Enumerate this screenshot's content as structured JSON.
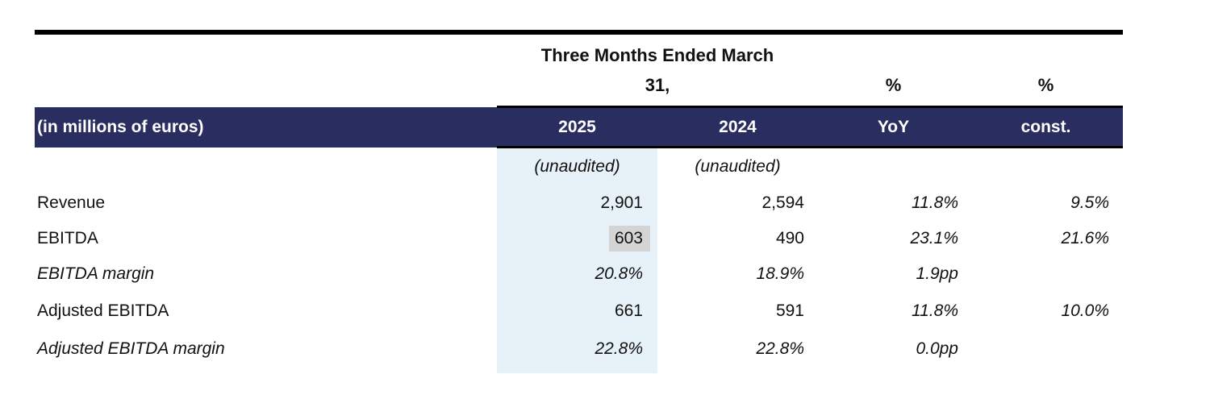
{
  "table": {
    "top_header": {
      "span_line1": "Three Months Ended March",
      "span_line2": "31,",
      "pct_yoy": "%",
      "pct_const": "%"
    },
    "header_row": {
      "unit_label": "(in millions of euros)",
      "col_2025": "2025",
      "col_2024": "2024",
      "col_yoy": "YoY",
      "col_const": "const."
    },
    "subheader": {
      "unaudited_2025": "(unaudited)",
      "unaudited_2024": "(unaudited)"
    },
    "rows": [
      {
        "label": "Revenue",
        "v2025": "2,901",
        "v2024": "2,594",
        "yoy": "11.8%",
        "const": "9.5%"
      },
      {
        "label": "EBITDA",
        "v2025": "603",
        "v2024": "490",
        "yoy": "23.1%",
        "const": "21.6%"
      },
      {
        "label": "EBITDA margin",
        "v2025": "20.8%",
        "v2024": "18.9%",
        "yoy": "1.9pp",
        "const": ""
      },
      {
        "label": "Adjusted EBITDA",
        "v2025": "661",
        "v2024": "591",
        "yoy": "11.8%",
        "const": "10.0%"
      },
      {
        "label": "Adjusted EBITDA margin",
        "v2025": "22.8%",
        "v2024": "22.8%",
        "yoy": "0.0pp",
        "const": ""
      }
    ],
    "colors": {
      "navy": "#2a2d5f",
      "column_highlight_blue": "#e7f2f8",
      "value_highlight_gray": "#d4d4d4",
      "rule_black": "#000000"
    }
  }
}
